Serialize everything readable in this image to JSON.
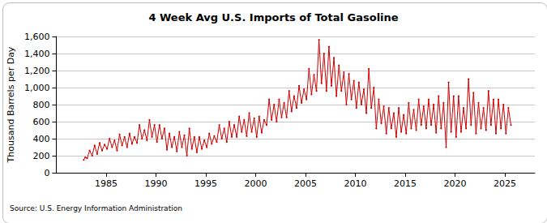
{
  "chart_data": {
    "type": "line",
    "title": "4 Week Avg U.S. Imports of Total Gasoline",
    "y_label": "Thousand Barrels per Day",
    "annotations": [
      "Source: U.S. Energy Information Administration"
    ],
    "color": "#cc0000",
    "marker": "circle",
    "grid": true,
    "xlim": [
      1980,
      2028
    ],
    "xticks": [
      1985,
      1990,
      1995,
      2000,
      2005,
      2010,
      2015,
      2020,
      2025
    ],
    "ylim": [
      0,
      1600
    ],
    "yticks": [
      0,
      200,
      400,
      600,
      800,
      {
        "value": 1000,
        "label": "1,000"
      },
      {
        "value": 1200,
        "label": "1,200"
      },
      {
        "value": 1400,
        "label": "1,400"
      },
      {
        "value": 1600,
        "label": "1,600"
      }
    ],
    "x": [
      1982.75,
      1982.9,
      1983.1,
      1983.35,
      1983.6,
      1983.85,
      1984.1,
      1984.35,
      1984.6,
      1984.85,
      1985.1,
      1985.35,
      1985.6,
      1985.85,
      1986.1,
      1986.35,
      1986.6,
      1986.85,
      1987.1,
      1987.35,
      1987.6,
      1987.85,
      1988.1,
      1988.35,
      1988.6,
      1988.85,
      1989.1,
      1989.35,
      1989.6,
      1989.85,
      1990.1,
      1990.35,
      1990.6,
      1990.85,
      1991.1,
      1991.35,
      1991.6,
      1991.85,
      1992.1,
      1992.35,
      1992.6,
      1992.85,
      1993.1,
      1993.35,
      1993.6,
      1993.85,
      1994.1,
      1994.35,
      1994.6,
      1994.85,
      1995.1,
      1995.35,
      1995.6,
      1995.85,
      1996.1,
      1996.35,
      1996.6,
      1996.85,
      1997.1,
      1997.35,
      1997.6,
      1997.85,
      1998.1,
      1998.35,
      1998.6,
      1998.85,
      1999.1,
      1999.35,
      1999.6,
      1999.85,
      2000.1,
      2000.35,
      2000.6,
      2000.85,
      2001.1,
      2001.35,
      2001.6,
      2001.85,
      2002.1,
      2002.35,
      2002.6,
      2002.85,
      2003.1,
      2003.35,
      2003.6,
      2003.85,
      2004.1,
      2004.35,
      2004.6,
      2004.85,
      2005.1,
      2005.35,
      2005.6,
      2005.85,
      2006.1,
      2006.35,
      2006.6,
      2006.85,
      2007.1,
      2007.35,
      2007.6,
      2007.85,
      2008.1,
      2008.35,
      2008.6,
      2008.85,
      2009.1,
      2009.35,
      2009.6,
      2009.85,
      2010.1,
      2010.35,
      2010.6,
      2010.85,
      2011.1,
      2011.35,
      2011.6,
      2011.85,
      2012.1,
      2012.35,
      2012.6,
      2012.85,
      2013.1,
      2013.35,
      2013.6,
      2013.85,
      2014.1,
      2014.35,
      2014.6,
      2014.85,
      2015.1,
      2015.35,
      2015.6,
      2015.85,
      2016.1,
      2016.35,
      2016.6,
      2016.85,
      2017.1,
      2017.35,
      2017.6,
      2017.85,
      2018.1,
      2018.35,
      2018.6,
      2018.85,
      2019.1,
      2019.35,
      2019.6,
      2019.85,
      2020.1,
      2020.35,
      2020.6,
      2020.85,
      2021.1,
      2021.35,
      2021.6,
      2021.85,
      2022.1,
      2022.35,
      2022.6,
      2022.85,
      2023.1,
      2023.35,
      2023.6,
      2023.85,
      2024.1,
      2024.35,
      2024.6,
      2024.85,
      2025.1,
      2025.35,
      2025.6
    ],
    "values": [
      150,
      180,
      170,
      260,
      200,
      320,
      220,
      350,
      260,
      330,
      280,
      400,
      300,
      380,
      260,
      450,
      320,
      420,
      300,
      460,
      340,
      420,
      350,
      560,
      400,
      500,
      380,
      620,
      420,
      560,
      360,
      560,
      400,
      520,
      270,
      460,
      300,
      420,
      250,
      480,
      300,
      440,
      200,
      520,
      280,
      420,
      240,
      420,
      280,
      380,
      300,
      460,
      340,
      430,
      360,
      560,
      400,
      520,
      360,
      600,
      420,
      560,
      420,
      660,
      480,
      620,
      430,
      700,
      480,
      640,
      420,
      660,
      470,
      620,
      560,
      860,
      620,
      800,
      600,
      860,
      650,
      820,
      650,
      960,
      720,
      900,
      760,
      1020,
      820,
      980,
      860,
      1220,
      920,
      1150,
      960,
      1560,
      1050,
      1400,
      960,
      1480,
      1020,
      1350,
      900,
      1260,
      960,
      1180,
      800,
      1160,
      860,
      1080,
      760,
      1060,
      800,
      980,
      700,
      1220,
      760,
      1000,
      520,
      860,
      580,
      780,
      460,
      760,
      520,
      700,
      420,
      760,
      480,
      680,
      460,
      820,
      520,
      740,
      500,
      860,
      560,
      780,
      520,
      860,
      560,
      800,
      470,
      900,
      520,
      820,
      300,
      1060,
      480,
      900,
      420,
      900,
      480,
      760,
      520,
      1100,
      560,
      940,
      460,
      820,
      520,
      760,
      500,
      960,
      560,
      860,
      460,
      860,
      520,
      800,
      460,
      760,
      560
    ]
  }
}
